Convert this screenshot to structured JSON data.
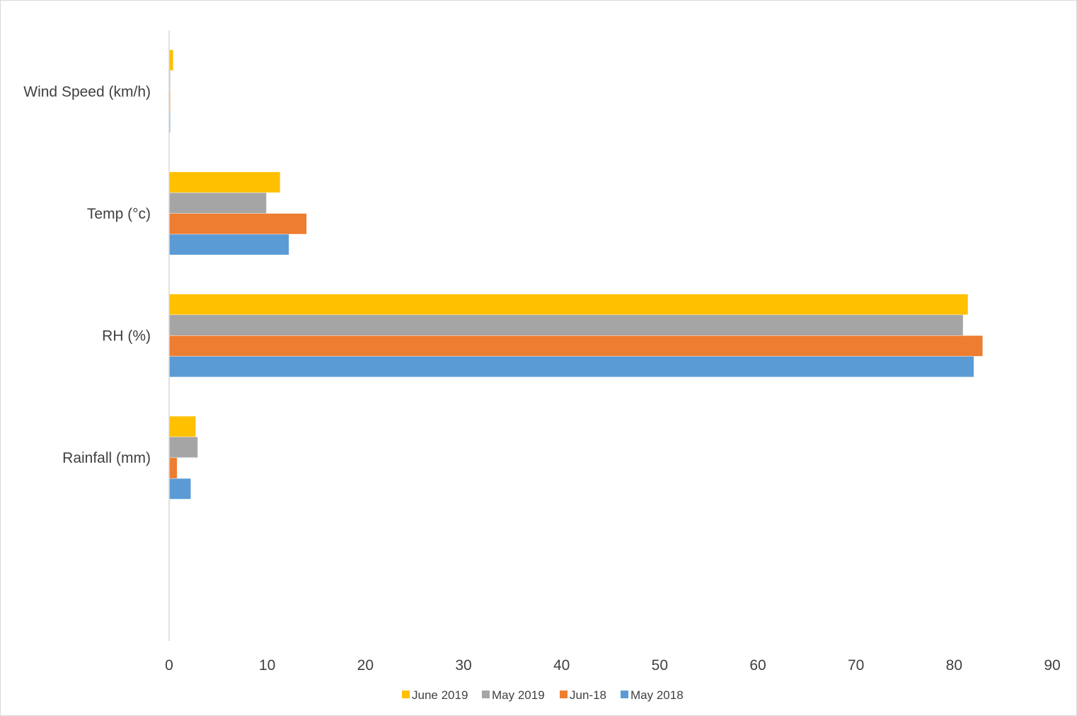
{
  "chart_data": {
    "type": "bar",
    "orientation": "horizontal",
    "categories": [
      "Rainfall (mm)",
      "RH (%)",
      "Temp (°c)",
      "Wind Speed (km/h)"
    ],
    "series": [
      {
        "name": "May 2018",
        "color": "#5B9BD5",
        "values": [
          2.2,
          82.0,
          12.2,
          0.1
        ]
      },
      {
        "name": "Jun-18",
        "color": "#ED7D31",
        "values": [
          0.8,
          82.9,
          14.0,
          0.1
        ]
      },
      {
        "name": "May 2019",
        "color": "#A5A5A5",
        "values": [
          2.9,
          80.9,
          9.9,
          0.1
        ]
      },
      {
        "name": "June 2019",
        "color": "#FFC000",
        "values": [
          2.7,
          81.4,
          11.3,
          0.4
        ]
      }
    ],
    "xlim": [
      0,
      90
    ],
    "xticks": [
      0,
      10,
      20,
      30,
      40,
      50,
      60,
      70,
      80,
      90
    ],
    "grid": false,
    "legend_position": "bottom",
    "legend_order": [
      "June 2019",
      "May 2019",
      "Jun-18",
      "May 2018"
    ],
    "title": "",
    "xlabel": "",
    "ylabel": ""
  }
}
